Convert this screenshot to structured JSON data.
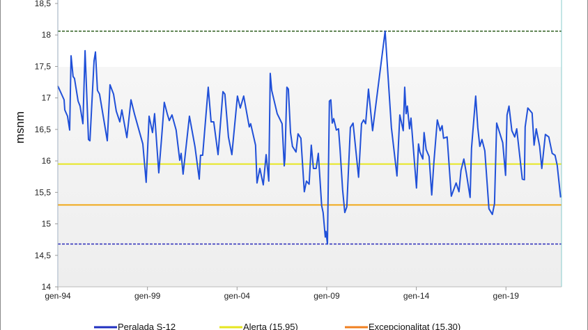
{
  "chart_data": {
    "type": "line",
    "title": "",
    "xlabel": "",
    "ylabel": "msnm",
    "ylim": [
      14,
      18.5
    ],
    "xlim": [
      1994,
      2022.1
    ],
    "grid": false,
    "legend_position": "bottom",
    "y_ticks": [
      "14",
      "14,5",
      "15",
      "15,5",
      "16",
      "16,5",
      "17",
      "17,5",
      "18",
      "18,5"
    ],
    "y_tick_values": [
      14,
      14.5,
      15,
      15.5,
      16,
      16.5,
      17,
      17.5,
      18,
      18.5
    ],
    "x_ticks": [
      "gen-94",
      "gen-99",
      "gen-04",
      "gen-09",
      "gen-14",
      "gen-19"
    ],
    "x_tick_values": [
      1994,
      1999,
      2004,
      2009,
      2014,
      2019
    ],
    "reference_lines": [
      {
        "name": "Alerta (15,95)",
        "value": 15.95,
        "color": "#e6e620",
        "style": "solid",
        "in_legend": true
      },
      {
        "name": "Excepcionalitat (15,30)",
        "value": 15.3,
        "color": "#f0a818",
        "style": "solid",
        "in_legend": true
      },
      {
        "name": "max",
        "value": 18.06,
        "color": "#2f5f1f",
        "style": "dashed",
        "in_legend": false
      },
      {
        "name": "min",
        "value": 14.68,
        "color": "#2a2ab8",
        "style": "dashed",
        "in_legend": false
      }
    ],
    "series": [
      {
        "name": "Peralada S-12",
        "color": "#2050d8",
        "points": [
          [
            1994.0,
            17.19
          ],
          [
            1994.16,
            17.09
          ],
          [
            1994.35,
            16.97
          ],
          [
            1994.39,
            16.81
          ],
          [
            1994.54,
            16.71
          ],
          [
            1994.66,
            16.49
          ],
          [
            1994.74,
            17.67
          ],
          [
            1994.85,
            17.34
          ],
          [
            1994.93,
            17.31
          ],
          [
            1995.13,
            16.95
          ],
          [
            1995.24,
            16.87
          ],
          [
            1995.4,
            16.59
          ],
          [
            1995.52,
            17.75
          ],
          [
            1995.71,
            16.34
          ],
          [
            1995.79,
            16.32
          ],
          [
            1996.02,
            17.59
          ],
          [
            1996.1,
            17.73
          ],
          [
            1996.21,
            17.12
          ],
          [
            1996.33,
            17.06
          ],
          [
            1996.76,
            16.32
          ],
          [
            1996.91,
            17.21
          ],
          [
            1997.11,
            17.06
          ],
          [
            1997.26,
            16.79
          ],
          [
            1997.46,
            16.62
          ],
          [
            1997.57,
            16.81
          ],
          [
            1997.85,
            16.37
          ],
          [
            1998.08,
            16.97
          ],
          [
            1998.27,
            16.75
          ],
          [
            1998.74,
            16.27
          ],
          [
            1998.93,
            15.66
          ],
          [
            1999.09,
            16.71
          ],
          [
            1999.28,
            16.45
          ],
          [
            1999.4,
            16.75
          ],
          [
            1999.63,
            15.81
          ],
          [
            1999.79,
            16.37
          ],
          [
            1999.94,
            16.93
          ],
          [
            2000.1,
            16.75
          ],
          [
            2000.22,
            16.64
          ],
          [
            2000.37,
            16.73
          ],
          [
            2000.6,
            16.49
          ],
          [
            2000.8,
            16.01
          ],
          [
            2000.88,
            16.12
          ],
          [
            2000.99,
            15.79
          ],
          [
            2001.34,
            16.71
          ],
          [
            2001.65,
            16.23
          ],
          [
            2001.89,
            15.71
          ],
          [
            2001.96,
            16.09
          ],
          [
            2002.08,
            16.09
          ],
          [
            2002.39,
            17.17
          ],
          [
            2002.55,
            16.62
          ],
          [
            2002.7,
            16.62
          ],
          [
            2002.94,
            16.1
          ],
          [
            2003.21,
            17.1
          ],
          [
            2003.32,
            17.06
          ],
          [
            2003.52,
            16.38
          ],
          [
            2003.71,
            16.1
          ],
          [
            2004.02,
            17.03
          ],
          [
            2004.18,
            16.84
          ],
          [
            2004.37,
            17.03
          ],
          [
            2004.68,
            16.54
          ],
          [
            2004.76,
            16.59
          ],
          [
            2005.03,
            16.25
          ],
          [
            2005.11,
            15.65
          ],
          [
            2005.27,
            15.88
          ],
          [
            2005.46,
            15.62
          ],
          [
            2005.62,
            16.1
          ],
          [
            2005.77,
            15.68
          ],
          [
            2005.85,
            17.39
          ],
          [
            2005.93,
            17.12
          ],
          [
            2006.24,
            16.75
          ],
          [
            2006.51,
            16.59
          ],
          [
            2006.63,
            15.92
          ],
          [
            2006.67,
            16.04
          ],
          [
            2006.78,
            17.17
          ],
          [
            2006.86,
            17.14
          ],
          [
            2006.98,
            16.45
          ],
          [
            2007.09,
            16.23
          ],
          [
            2007.29,
            16.14
          ],
          [
            2007.4,
            16.43
          ],
          [
            2007.56,
            16.36
          ],
          [
            2007.75,
            15.51
          ],
          [
            2007.87,
            15.68
          ],
          [
            2008.02,
            15.63
          ],
          [
            2008.14,
            16.25
          ],
          [
            2008.26,
            15.88
          ],
          [
            2008.41,
            15.88
          ],
          [
            2008.53,
            16.12
          ],
          [
            2008.72,
            15.29
          ],
          [
            2008.8,
            15.18
          ],
          [
            2008.92,
            14.79
          ],
          [
            2008.96,
            14.88
          ],
          [
            2009.04,
            14.68
          ],
          [
            2009.15,
            16.95
          ],
          [
            2009.23,
            16.97
          ],
          [
            2009.31,
            16.6
          ],
          [
            2009.39,
            16.67
          ],
          [
            2009.54,
            16.49
          ],
          [
            2009.66,
            16.51
          ],
          [
            2009.74,
            16.2
          ],
          [
            2009.89,
            15.54
          ],
          [
            2010.01,
            15.18
          ],
          [
            2010.12,
            15.27
          ],
          [
            2010.32,
            16.53
          ],
          [
            2010.47,
            16.6
          ],
          [
            2010.78,
            15.74
          ],
          [
            2010.94,
            16.59
          ],
          [
            2011.06,
            16.65
          ],
          [
            2011.17,
            16.59
          ],
          [
            2011.33,
            17.14
          ],
          [
            2011.56,
            16.48
          ],
          [
            2012.26,
            18.06
          ],
          [
            2012.61,
            16.53
          ],
          [
            2012.92,
            15.76
          ],
          [
            2013.08,
            16.73
          ],
          [
            2013.27,
            16.48
          ],
          [
            2013.35,
            17.17
          ],
          [
            2013.43,
            16.75
          ],
          [
            2013.5,
            16.87
          ],
          [
            2013.62,
            16.51
          ],
          [
            2013.7,
            16.68
          ],
          [
            2014.01,
            15.57
          ],
          [
            2014.12,
            16.27
          ],
          [
            2014.2,
            16.14
          ],
          [
            2014.36,
            16.03
          ],
          [
            2014.43,
            16.45
          ],
          [
            2014.55,
            16.18
          ],
          [
            2014.71,
            16.07
          ],
          [
            2014.86,
            15.46
          ],
          [
            2014.98,
            15.98
          ],
          [
            2015.17,
            16.65
          ],
          [
            2015.33,
            16.48
          ],
          [
            2015.44,
            16.56
          ],
          [
            2015.52,
            16.36
          ],
          [
            2015.72,
            16.38
          ],
          [
            2015.95,
            15.44
          ],
          [
            2016.22,
            15.65
          ],
          [
            2016.38,
            15.51
          ],
          [
            2016.49,
            15.85
          ],
          [
            2016.65,
            16.03
          ],
          [
            2016.8,
            15.79
          ],
          [
            2017.0,
            15.42
          ],
          [
            2017.08,
            16.2
          ],
          [
            2017.31,
            17.03
          ],
          [
            2017.43,
            16.53
          ],
          [
            2017.54,
            16.23
          ],
          [
            2017.66,
            16.34
          ],
          [
            2017.82,
            16.16
          ],
          [
            2018.05,
            15.24
          ],
          [
            2018.24,
            15.15
          ],
          [
            2018.36,
            15.32
          ],
          [
            2018.48,
            16.6
          ],
          [
            2018.82,
            16.29
          ],
          [
            2018.98,
            15.77
          ],
          [
            2019.06,
            16.73
          ],
          [
            2019.17,
            16.87
          ],
          [
            2019.33,
            16.48
          ],
          [
            2019.49,
            16.38
          ],
          [
            2019.6,
            16.51
          ],
          [
            2019.91,
            15.71
          ],
          [
            2020.03,
            15.7
          ],
          [
            2020.07,
            16.54
          ],
          [
            2020.22,
            16.84
          ],
          [
            2020.46,
            16.76
          ],
          [
            2020.57,
            16.25
          ],
          [
            2020.69,
            16.51
          ],
          [
            2020.88,
            16.23
          ],
          [
            2021.0,
            15.88
          ],
          [
            2021.2,
            16.42
          ],
          [
            2021.39,
            16.38
          ],
          [
            2021.58,
            16.12
          ],
          [
            2021.74,
            16.09
          ],
          [
            2021.86,
            15.93
          ],
          [
            2022.05,
            15.42
          ]
        ]
      }
    ],
    "legend": [
      {
        "label": "Peralada S-12",
        "color": "#2030c0"
      },
      {
        "label": "Alerta (15,95)",
        "color": "#e6e620"
      },
      {
        "label": "Excepcionalitat (15,30)",
        "color": "#f08020"
      }
    ]
  }
}
